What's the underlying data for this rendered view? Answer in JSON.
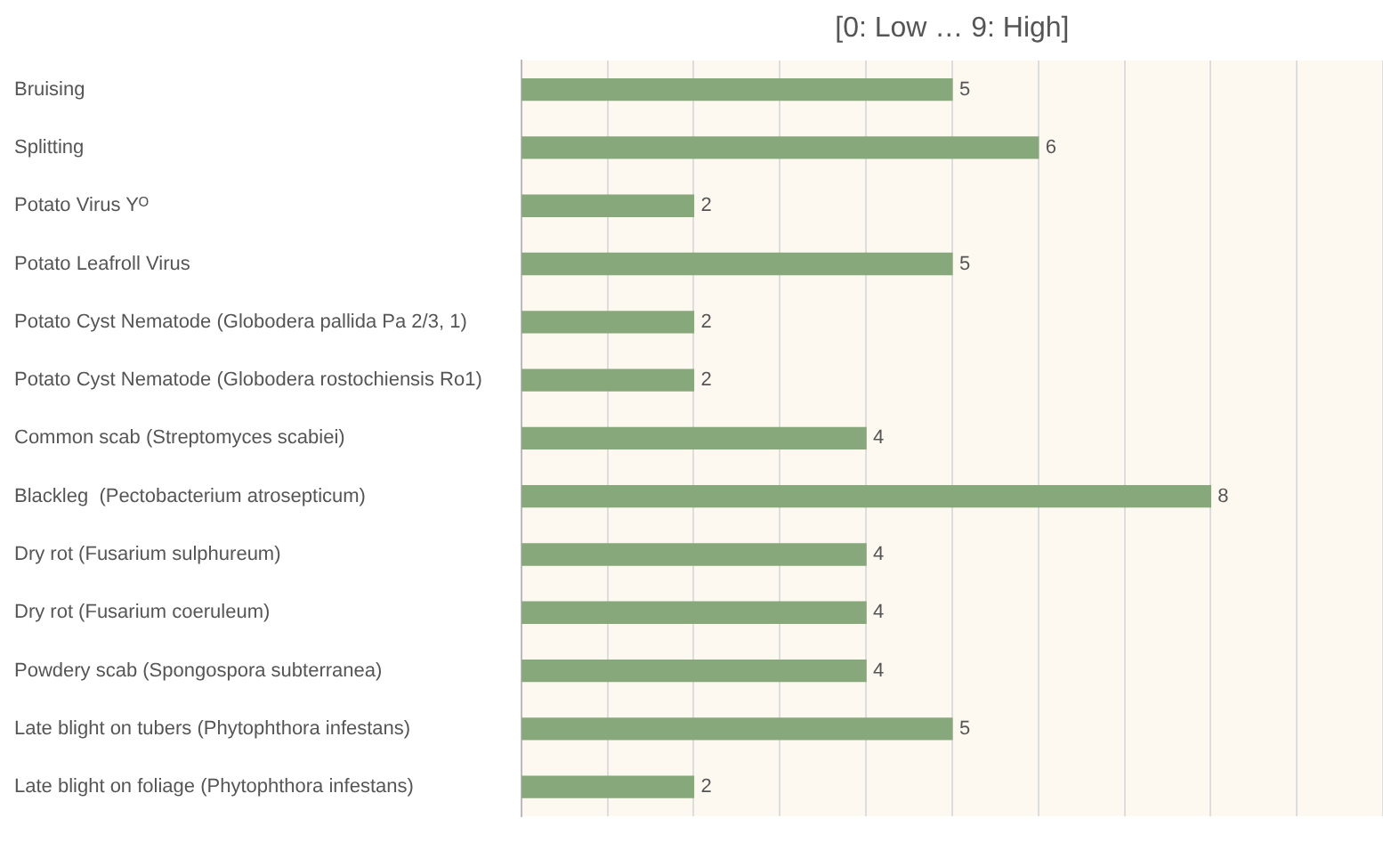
{
  "chart_data": {
    "type": "bar",
    "orientation": "horizontal",
    "title": "[0: Low … 9: High]",
    "categories": [
      "Bruising",
      "Splitting",
      "Potato Virus Yᴼ",
      "Potato Leafroll Virus",
      "Potato Cyst Nematode (Globodera pallida Pa 2/3, 1)",
      "Potato Cyst Nematode (Globodera rostochiensis Ro1)",
      "Common scab (Streptomyces scabiei)",
      "Blackleg  (Pectobacterium atrosepticum)",
      "Dry rot (Fusarium sulphureum)",
      "Dry rot (Fusarium coeruleum)",
      "Powdery scab (Spongospora subterranea)",
      "Late blight on tubers (Phytophthora infestans)",
      "Late blight on foliage (Phytophthora infestans)"
    ],
    "values": [
      5,
      6,
      2,
      5,
      2,
      2,
      4,
      8,
      4,
      4,
      4,
      5,
      2
    ],
    "color": "#86a87a",
    "xlim": [
      0,
      10
    ],
    "xticks": [
      {
        "value": 0,
        "label": null
      },
      {
        "value": 1,
        "label": null
      },
      {
        "value": 2,
        "label": null
      },
      {
        "value": 3,
        "label": null
      },
      {
        "value": 4,
        "label": null
      },
      {
        "value": 5,
        "label": null
      },
      {
        "value": 6,
        "label": null
      },
      {
        "value": 7,
        "label": null
      },
      {
        "value": 8,
        "label": null
      },
      {
        "value": 9,
        "label": null
      },
      {
        "value": 10,
        "label": null
      }
    ],
    "tick_labels": "y",
    "grid": "x",
    "legend": false,
    "data_labels": true
  }
}
